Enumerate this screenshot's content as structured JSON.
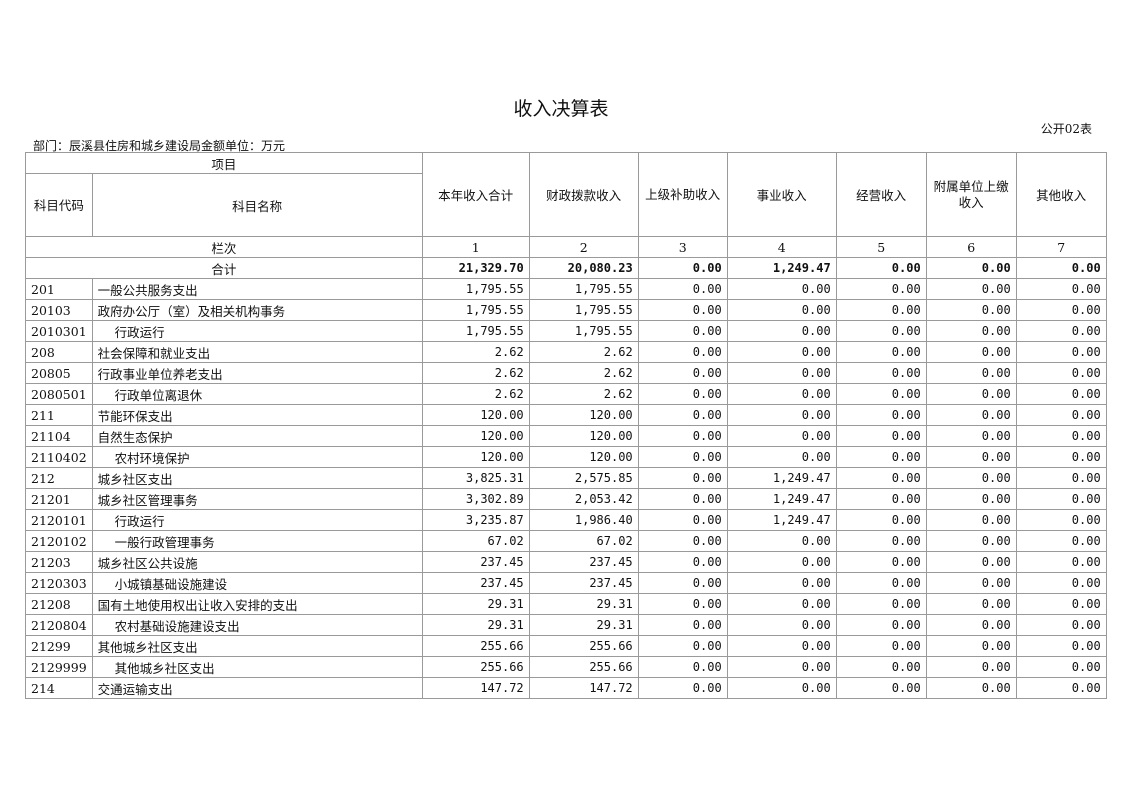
{
  "title": "收入决算表",
  "form_no": "公开02表",
  "dept_line": "部门：辰溪县住房和城乡建设局金额单位：万元",
  "headers": {
    "project": "项目",
    "code": "科目代码",
    "name": "科目名称",
    "columns": [
      "本年收入合计",
      "财政拨款收入",
      "上级补助收入",
      "事业收入",
      "经营收入",
      "附属单位上缴收入",
      "其他收入"
    ],
    "seq_label": "栏次",
    "seq": [
      "1",
      "2",
      "3",
      "4",
      "5",
      "6",
      "7"
    ]
  },
  "total": {
    "label": "合计",
    "values": [
      "21,329.70",
      "20,080.23",
      "0.00",
      "1,249.47",
      "0.00",
      "0.00",
      "0.00"
    ]
  },
  "rows": [
    {
      "code": "201",
      "name": "一般公共服务支出",
      "values": [
        "1,795.55",
        "1,795.55",
        "0.00",
        "0.00",
        "0.00",
        "0.00",
        "0.00"
      ]
    },
    {
      "code": "20103",
      "name": "政府办公厅（室）及相关机构事务",
      "values": [
        "1,795.55",
        "1,795.55",
        "0.00",
        "0.00",
        "0.00",
        "0.00",
        "0.00"
      ]
    },
    {
      "code": "2010301",
      "name": "行政运行",
      "values": [
        "1,795.55",
        "1,795.55",
        "0.00",
        "0.00",
        "0.00",
        "0.00",
        "0.00"
      ]
    },
    {
      "code": "208",
      "name": "社会保障和就业支出",
      "values": [
        "2.62",
        "2.62",
        "0.00",
        "0.00",
        "0.00",
        "0.00",
        "0.00"
      ]
    },
    {
      "code": "20805",
      "name": "行政事业单位养老支出",
      "values": [
        "2.62",
        "2.62",
        "0.00",
        "0.00",
        "0.00",
        "0.00",
        "0.00"
      ]
    },
    {
      "code": "2080501",
      "name": "行政单位离退休",
      "values": [
        "2.62",
        "2.62",
        "0.00",
        "0.00",
        "0.00",
        "0.00",
        "0.00"
      ]
    },
    {
      "code": "211",
      "name": "节能环保支出",
      "values": [
        "120.00",
        "120.00",
        "0.00",
        "0.00",
        "0.00",
        "0.00",
        "0.00"
      ]
    },
    {
      "code": "21104",
      "name": "自然生态保护",
      "values": [
        "120.00",
        "120.00",
        "0.00",
        "0.00",
        "0.00",
        "0.00",
        "0.00"
      ]
    },
    {
      "code": "2110402",
      "name": "农村环境保护",
      "values": [
        "120.00",
        "120.00",
        "0.00",
        "0.00",
        "0.00",
        "0.00",
        "0.00"
      ]
    },
    {
      "code": "212",
      "name": "城乡社区支出",
      "values": [
        "3,825.31",
        "2,575.85",
        "0.00",
        "1,249.47",
        "0.00",
        "0.00",
        "0.00"
      ]
    },
    {
      "code": "21201",
      "name": "城乡社区管理事务",
      "values": [
        "3,302.89",
        "2,053.42",
        "0.00",
        "1,249.47",
        "0.00",
        "0.00",
        "0.00"
      ]
    },
    {
      "code": "2120101",
      "name": "行政运行",
      "values": [
        "3,235.87",
        "1,986.40",
        "0.00",
        "1,249.47",
        "0.00",
        "0.00",
        "0.00"
      ]
    },
    {
      "code": "2120102",
      "name": "一般行政管理事务",
      "values": [
        "67.02",
        "67.02",
        "0.00",
        "0.00",
        "0.00",
        "0.00",
        "0.00"
      ]
    },
    {
      "code": "21203",
      "name": "城乡社区公共设施",
      "values": [
        "237.45",
        "237.45",
        "0.00",
        "0.00",
        "0.00",
        "0.00",
        "0.00"
      ]
    },
    {
      "code": "2120303",
      "name": "小城镇基础设施建设",
      "values": [
        "237.45",
        "237.45",
        "0.00",
        "0.00",
        "0.00",
        "0.00",
        "0.00"
      ]
    },
    {
      "code": "21208",
      "name": "国有土地使用权出让收入安排的支出",
      "values": [
        "29.31",
        "29.31",
        "0.00",
        "0.00",
        "0.00",
        "0.00",
        "0.00"
      ]
    },
    {
      "code": "2120804",
      "name": "农村基础设施建设支出",
      "values": [
        "29.31",
        "29.31",
        "0.00",
        "0.00",
        "0.00",
        "0.00",
        "0.00"
      ]
    },
    {
      "code": "21299",
      "name": "其他城乡社区支出",
      "values": [
        "255.66",
        "255.66",
        "0.00",
        "0.00",
        "0.00",
        "0.00",
        "0.00"
      ]
    },
    {
      "code": "2129999",
      "name": "其他城乡社区支出",
      "values": [
        "255.66",
        "255.66",
        "0.00",
        "0.00",
        "0.00",
        "0.00",
        "0.00"
      ]
    },
    {
      "code": "214",
      "name": "交通运输支出",
      "values": [
        "147.72",
        "147.72",
        "0.00",
        "0.00",
        "0.00",
        "0.00",
        "0.00"
      ]
    }
  ]
}
